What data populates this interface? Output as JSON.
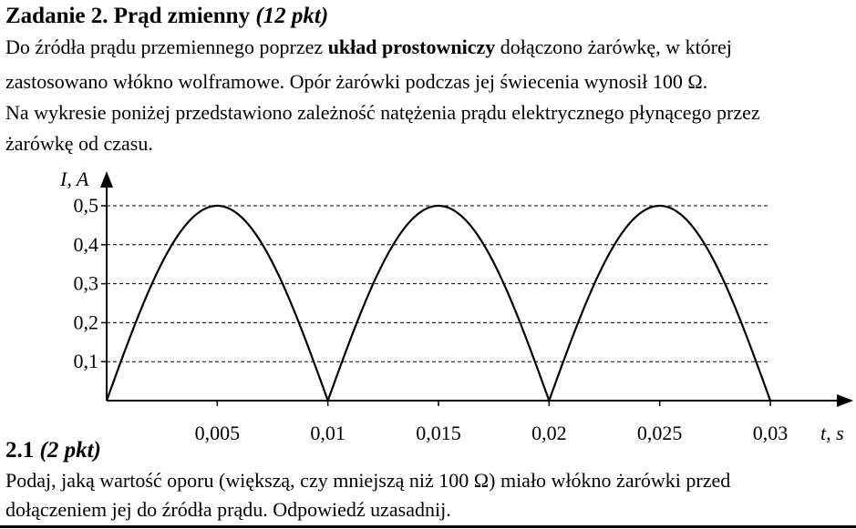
{
  "task": {
    "title_main": "Zadanie 2. Prąd zmienny",
    "title_points": "(12 pkt)",
    "intro_line1_a": "Do źródła prądu przemiennego poprzez",
    "intro_line1_bold": "układ prostowniczy",
    "intro_line1_b": "dołączono żarówkę, w której",
    "intro_line2": "zastosowano włókno wolframowe. Opór żarówki podczas jej świecenia wynosił 100 Ω.",
    "intro_line3": "Na wykresie poniżej przedstawiono zależność natężenia prądu elektrycznego płynącego przez",
    "intro_line4": "żarówkę od czasu."
  },
  "chart_data": {
    "type": "line",
    "ylabel": "I, A",
    "xlabel": "t, s",
    "yticks": [
      "0,1",
      "0,2",
      "0,3",
      "0,4",
      "0,5"
    ],
    "ytick_values": [
      0.1,
      0.2,
      0.3,
      0.4,
      0.5
    ],
    "xticks": [
      "0,005",
      "0,01",
      "0,015",
      "0,02",
      "0,025",
      "0,03"
    ],
    "xtick_values": [
      0.005,
      0.01,
      0.015,
      0.02,
      0.025,
      0.03
    ],
    "xlim": [
      0,
      0.03
    ],
    "ylim": [
      0,
      0.5
    ],
    "grid": "dashed horizontal",
    "series": [
      {
        "x": [
          0,
          0.005,
          0.01,
          0.015,
          0.02,
          0.025,
          0.03
        ],
        "y": [
          0,
          0.5,
          0,
          0.5,
          0,
          0.5,
          0
        ]
      }
    ]
  },
  "subtask": {
    "number": "2.1",
    "points": "(2 pkt)",
    "line1": "Podaj, jaką wartość oporu (większą, czy mniejszą niż 100 Ω) miało włókno żarówki przed",
    "line2": "dołączeniem jej do źródła prądu. Odpowiedź uzasadnij."
  }
}
